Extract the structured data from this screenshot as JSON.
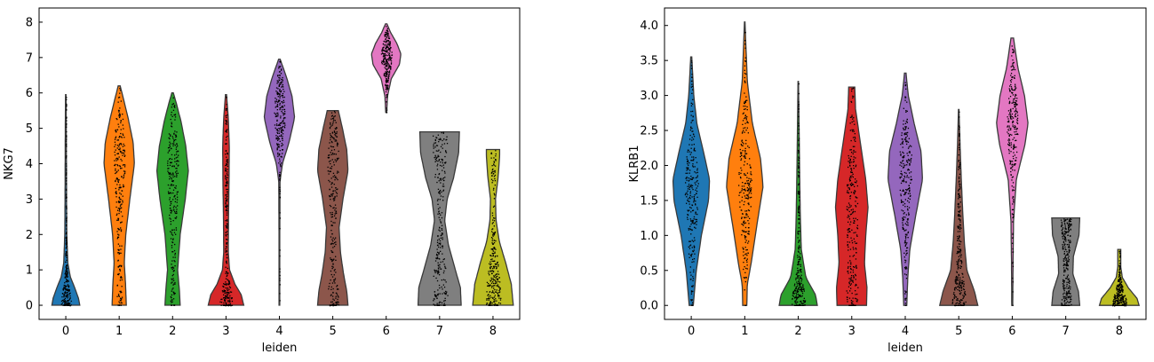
{
  "chart_data": [
    {
      "type": "violin",
      "xlabel": "leiden",
      "ylabel": "NKG7",
      "categories": [
        "0",
        "1",
        "2",
        "3",
        "4",
        "5",
        "6",
        "7",
        "8"
      ],
      "yticks": [
        0,
        1,
        2,
        3,
        4,
        5,
        6,
        7,
        8
      ],
      "ylim": [
        -0.4,
        8.4
      ],
      "colors": [
        "#1f77b4",
        "#ff7f0e",
        "#2ca02c",
        "#d62728",
        "#9467bd",
        "#8c564b",
        "#e377c2",
        "#7f7f7f",
        "#bcbd22"
      ],
      "violins": [
        {
          "category": "0",
          "min": 0,
          "max": 5.95,
          "profile": [
            [
              0,
              0.55
            ],
            [
              0.2,
              0.5
            ],
            [
              0.5,
              0.35
            ],
            [
              0.8,
              0.18
            ],
            [
              1.2,
              0.08
            ],
            [
              2,
              0.04
            ],
            [
              3,
              0.03
            ],
            [
              4,
              0.025
            ],
            [
              5,
              0.02
            ],
            [
              5.95,
              0.01
            ]
          ]
        },
        {
          "category": "1",
          "min": 0,
          "max": 6.2,
          "profile": [
            [
              0,
              0.28
            ],
            [
              0.6,
              0.25
            ],
            [
              1.2,
              0.2
            ],
            [
              2,
              0.26
            ],
            [
              3,
              0.42
            ],
            [
              4,
              0.6
            ],
            [
              4.6,
              0.55
            ],
            [
              5.3,
              0.35
            ],
            [
              5.8,
              0.18
            ],
            [
              6.2,
              0.04
            ]
          ]
        },
        {
          "category": "2",
          "min": 0,
          "max": 6.0,
          "profile": [
            [
              0,
              0.3
            ],
            [
              0.4,
              0.27
            ],
            [
              1,
              0.2
            ],
            [
              2,
              0.3
            ],
            [
              3,
              0.5
            ],
            [
              3.8,
              0.62
            ],
            [
              4.5,
              0.52
            ],
            [
              5.2,
              0.33
            ],
            [
              5.7,
              0.15
            ],
            [
              6.0,
              0.03
            ]
          ]
        },
        {
          "category": "3",
          "min": 0,
          "max": 5.95,
          "profile": [
            [
              0,
              0.7
            ],
            [
              0.3,
              0.6
            ],
            [
              0.6,
              0.35
            ],
            [
              1,
              0.14
            ],
            [
              1.5,
              0.09
            ],
            [
              2.5,
              0.1
            ],
            [
              3.5,
              0.12
            ],
            [
              4.5,
              0.13
            ],
            [
              5.3,
              0.09
            ],
            [
              5.95,
              0.02
            ]
          ]
        },
        {
          "category": "4",
          "min": 0,
          "max": 6.95,
          "profile": [
            [
              0,
              0.015
            ],
            [
              2,
              0.015
            ],
            [
              3.5,
              0.025
            ],
            [
              4,
              0.12
            ],
            [
              4.6,
              0.38
            ],
            [
              5.3,
              0.6
            ],
            [
              5.9,
              0.5
            ],
            [
              6.4,
              0.3
            ],
            [
              6.75,
              0.13
            ],
            [
              6.95,
              0.03
            ]
          ]
        },
        {
          "category": "5",
          "min": 0,
          "max": 5.5,
          "profile": [
            [
              0,
              0.6
            ],
            [
              0.4,
              0.55
            ],
            [
              0.9,
              0.42
            ],
            [
              1.5,
              0.3
            ],
            [
              2.2,
              0.25
            ],
            [
              3,
              0.4
            ],
            [
              3.8,
              0.6
            ],
            [
              4.4,
              0.55
            ],
            [
              5.0,
              0.38
            ],
            [
              5.5,
              0.22
            ]
          ]
        },
        {
          "category": "6",
          "min": 5.45,
          "max": 7.95,
          "profile": [
            [
              5.45,
              0.02
            ],
            [
              5.9,
              0.05
            ],
            [
              6.4,
              0.2
            ],
            [
              6.8,
              0.52
            ],
            [
              7.1,
              0.58
            ],
            [
              7.4,
              0.42
            ],
            [
              7.7,
              0.18
            ],
            [
              7.95,
              0.03
            ]
          ]
        },
        {
          "category": "7",
          "min": 0,
          "max": 4.9,
          "profile": [
            [
              0,
              0.85
            ],
            [
              0.5,
              0.82
            ],
            [
              1,
              0.62
            ],
            [
              1.7,
              0.35
            ],
            [
              2.4,
              0.2
            ],
            [
              3,
              0.3
            ],
            [
              3.6,
              0.55
            ],
            [
              4.3,
              0.75
            ],
            [
              4.9,
              0.78
            ]
          ]
        },
        {
          "category": "8",
          "min": 0,
          "max": 4.4,
          "profile": [
            [
              0,
              0.8
            ],
            [
              0.6,
              0.72
            ],
            [
              1.2,
              0.5
            ],
            [
              1.8,
              0.25
            ],
            [
              2.4,
              0.12
            ],
            [
              3,
              0.1
            ],
            [
              3.6,
              0.2
            ],
            [
              4.2,
              0.26
            ],
            [
              4.4,
              0.26
            ]
          ]
        }
      ]
    },
    {
      "type": "violin",
      "xlabel": "leiden",
      "ylabel": "KLRB1",
      "categories": [
        "0",
        "1",
        "2",
        "3",
        "4",
        "5",
        "6",
        "7",
        "8"
      ],
      "yticks": [
        0.0,
        0.5,
        1.0,
        1.5,
        2.0,
        2.5,
        3.0,
        3.5,
        4.0
      ],
      "ytick_labels": [
        "0.0",
        "0.5",
        "1.0",
        "1.5",
        "2.0",
        "2.5",
        "3.0",
        "3.5",
        "4.0"
      ],
      "ylim": [
        -0.2,
        4.25
      ],
      "colors": [
        "#1f77b4",
        "#ff7f0e",
        "#2ca02c",
        "#d62728",
        "#9467bd",
        "#8c564b",
        "#e377c2",
        "#7f7f7f",
        "#bcbd22"
      ],
      "violins": [
        {
          "category": "0",
          "min": 0,
          "max": 3.55,
          "profile": [
            [
              0,
              0.08
            ],
            [
              0.5,
              0.2
            ],
            [
              1,
              0.4
            ],
            [
              1.5,
              0.68
            ],
            [
              1.8,
              0.72
            ],
            [
              2.2,
              0.48
            ],
            [
              2.6,
              0.22
            ],
            [
              3.0,
              0.1
            ],
            [
              3.55,
              0.02
            ]
          ]
        },
        {
          "category": "1",
          "min": 0,
          "max": 4.05,
          "profile": [
            [
              0,
              0.08
            ],
            [
              0.3,
              0.1
            ],
            [
              0.6,
              0.25
            ],
            [
              1.2,
              0.5
            ],
            [
              1.7,
              0.72
            ],
            [
              2.1,
              0.62
            ],
            [
              2.6,
              0.3
            ],
            [
              3.2,
              0.1
            ],
            [
              4.05,
              0.01
            ]
          ]
        },
        {
          "category": "2",
          "min": 0,
          "max": 3.2,
          "profile": [
            [
              0,
              0.75
            ],
            [
              0.15,
              0.68
            ],
            [
              0.4,
              0.3
            ],
            [
              0.8,
              0.12
            ],
            [
              1.3,
              0.08
            ],
            [
              2,
              0.05
            ],
            [
              2.6,
              0.03
            ],
            [
              3.2,
              0.01
            ]
          ]
        },
        {
          "category": "3",
          "min": 0,
          "max": 3.12,
          "profile": [
            [
              0,
              0.58
            ],
            [
              0.25,
              0.6
            ],
            [
              0.6,
              0.5
            ],
            [
              1.0,
              0.55
            ],
            [
              1.4,
              0.64
            ],
            [
              1.8,
              0.55
            ],
            [
              2.3,
              0.35
            ],
            [
              2.8,
              0.15
            ],
            [
              3.12,
              0.12
            ]
          ]
        },
        {
          "category": "4",
          "min": 0,
          "max": 3.32,
          "profile": [
            [
              0,
              0.06
            ],
            [
              0.4,
              0.1
            ],
            [
              0.8,
              0.18
            ],
            [
              1.3,
              0.42
            ],
            [
              1.8,
              0.68
            ],
            [
              2.2,
              0.62
            ],
            [
              2.6,
              0.35
            ],
            [
              3.0,
              0.12
            ],
            [
              3.32,
              0.03
            ]
          ]
        },
        {
          "category": "5",
          "min": 0,
          "max": 2.8,
          "profile": [
            [
              0,
              0.75
            ],
            [
              0.2,
              0.62
            ],
            [
              0.5,
              0.32
            ],
            [
              0.9,
              0.22
            ],
            [
              1.3,
              0.16
            ],
            [
              1.8,
              0.1
            ],
            [
              2.3,
              0.05
            ],
            [
              2.8,
              0.01
            ]
          ]
        },
        {
          "category": "6",
          "min": 0,
          "max": 3.82,
          "profile": [
            [
              0,
              0.02
            ],
            [
              0.6,
              0.03
            ],
            [
              1.2,
              0.05
            ],
            [
              1.8,
              0.16
            ],
            [
              2.3,
              0.5
            ],
            [
              2.6,
              0.62
            ],
            [
              3.0,
              0.48
            ],
            [
              3.4,
              0.22
            ],
            [
              3.82,
              0.05
            ]
          ]
        },
        {
          "category": "7",
          "min": 0,
          "max": 1.25,
          "profile": [
            [
              0,
              0.55
            ],
            [
              0.2,
              0.5
            ],
            [
              0.45,
              0.28
            ],
            [
              0.7,
              0.3
            ],
            [
              1.0,
              0.52
            ],
            [
              1.25,
              0.55
            ]
          ]
        },
        {
          "category": "8",
          "min": 0,
          "max": 0.8,
          "profile": [
            [
              0,
              0.78
            ],
            [
              0.1,
              0.7
            ],
            [
              0.25,
              0.36
            ],
            [
              0.4,
              0.12
            ],
            [
              0.55,
              0.06
            ],
            [
              0.8,
              0.06
            ]
          ]
        }
      ]
    }
  ]
}
